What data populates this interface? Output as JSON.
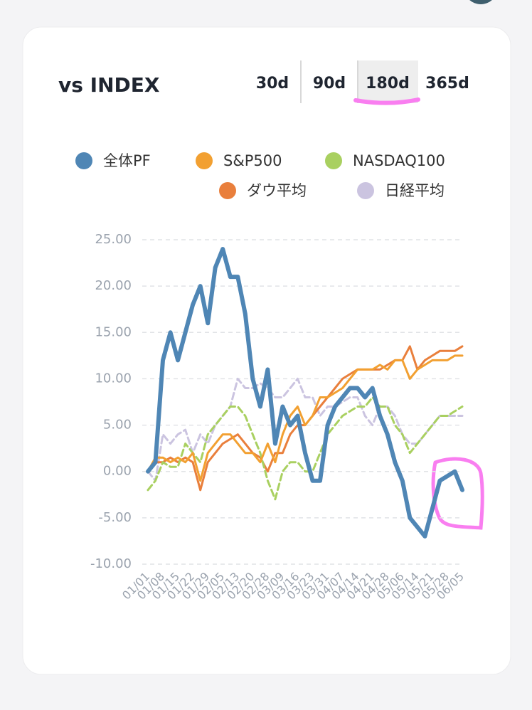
{
  "header": {
    "title": "vs INDEX",
    "ranges": [
      "30d",
      "90d",
      "180d",
      "365d"
    ],
    "selected": 2
  },
  "chart_data": {
    "type": "line",
    "categories": [
      "01/01",
      null,
      "01/08",
      null,
      "01/15",
      null,
      "01/22",
      null,
      "01/29",
      null,
      "02/05",
      null,
      "02/13",
      null,
      "02/20",
      null,
      "02/28",
      null,
      "03/09",
      null,
      "03/16",
      null,
      "03/23",
      null,
      "03/31",
      null,
      "04/07",
      null,
      "04/14",
      null,
      "04/21",
      null,
      "04/28",
      null,
      "05/06",
      null,
      "05/14",
      null,
      "05/21",
      null,
      "05/28",
      null,
      "06/05"
    ],
    "series": [
      {
        "name": "全体PF",
        "color": "#4f86b5",
        "width": 6,
        "dashed": false,
        "values": [
          0,
          1,
          12,
          15,
          12,
          15,
          18,
          20,
          16,
          22,
          24,
          21,
          21,
          17,
          10,
          7,
          11,
          3,
          7,
          5,
          6,
          2,
          -1,
          -1,
          5,
          7,
          8,
          9,
          9,
          8,
          9,
          6,
          4,
          1,
          -1,
          -5,
          -6,
          -7,
          -4,
          -1,
          -0.5,
          0,
          -2
        ]
      },
      {
        "name": "S&P500",
        "color": "#f2a031",
        "width": 3,
        "dashed": false,
        "values": [
          0,
          1.5,
          1.5,
          1,
          1.5,
          1,
          2,
          -1,
          2,
          3,
          4,
          4,
          3,
          2,
          2,
          1,
          3,
          1,
          4,
          6,
          7,
          5,
          6,
          8,
          8,
          8.5,
          9,
          10,
          11,
          11,
          11,
          11.5,
          11,
          12,
          12,
          10,
          11,
          11.5,
          12,
          12,
          12,
          12.5,
          12.5
        ]
      },
      {
        "name": "NASDAQ100",
        "color": "#a9d060",
        "width": 3,
        "dashed": true,
        "values": [
          -2,
          -1,
          1,
          0.5,
          0.5,
          3,
          2,
          1,
          4,
          5,
          6,
          7,
          7,
          6,
          4,
          2,
          -1,
          -3,
          0,
          1,
          1,
          0,
          0,
          2,
          4,
          5,
          6,
          6.5,
          7,
          7,
          8,
          7,
          7,
          5,
          4,
          2,
          3,
          4,
          5,
          6,
          6,
          6.5,
          7
        ]
      },
      {
        "name": "ダウ平均",
        "color": "#e97f3c",
        "width": 3,
        "dashed": false,
        "values": [
          0,
          1,
          1,
          1.5,
          1,
          1.5,
          1,
          -2,
          1,
          2,
          3,
          3.5,
          4,
          3,
          2,
          1.5,
          0,
          2,
          2,
          4,
          5,
          5,
          6,
          7,
          8,
          9,
          10,
          10.5,
          11,
          11,
          11,
          11,
          11.5,
          12,
          12,
          13.5,
          11,
          12,
          12.5,
          13,
          13,
          13,
          13.5
        ]
      },
      {
        "name": "日経平均",
        "color": "#cbc4e0",
        "width": 3,
        "dashed": true,
        "values": [
          0,
          -1,
          4,
          3,
          4,
          4.5,
          2,
          4,
          3,
          5,
          6,
          7,
          10,
          9,
          9,
          9.5,
          9,
          8,
          8,
          9,
          10,
          8,
          8,
          6,
          7,
          7,
          7.5,
          8,
          8,
          6,
          5,
          7,
          7,
          6,
          4,
          3,
          3,
          4,
          5,
          6,
          6,
          6,
          6
        ]
      }
    ],
    "ylim": [
      -10,
      25
    ],
    "yticks": [
      {
        "value": -10,
        "label": "-10.00"
      },
      {
        "value": -5,
        "label": "-5.00"
      },
      {
        "value": 0,
        "label": "0.00"
      },
      {
        "value": 5,
        "label": "5.00"
      },
      {
        "value": 10,
        "label": "10.00"
      },
      {
        "value": 15,
        "label": "15.00"
      },
      {
        "value": 20,
        "label": "20.00"
      },
      {
        "value": 25,
        "label": "25.00"
      }
    ],
    "grid": true
  }
}
